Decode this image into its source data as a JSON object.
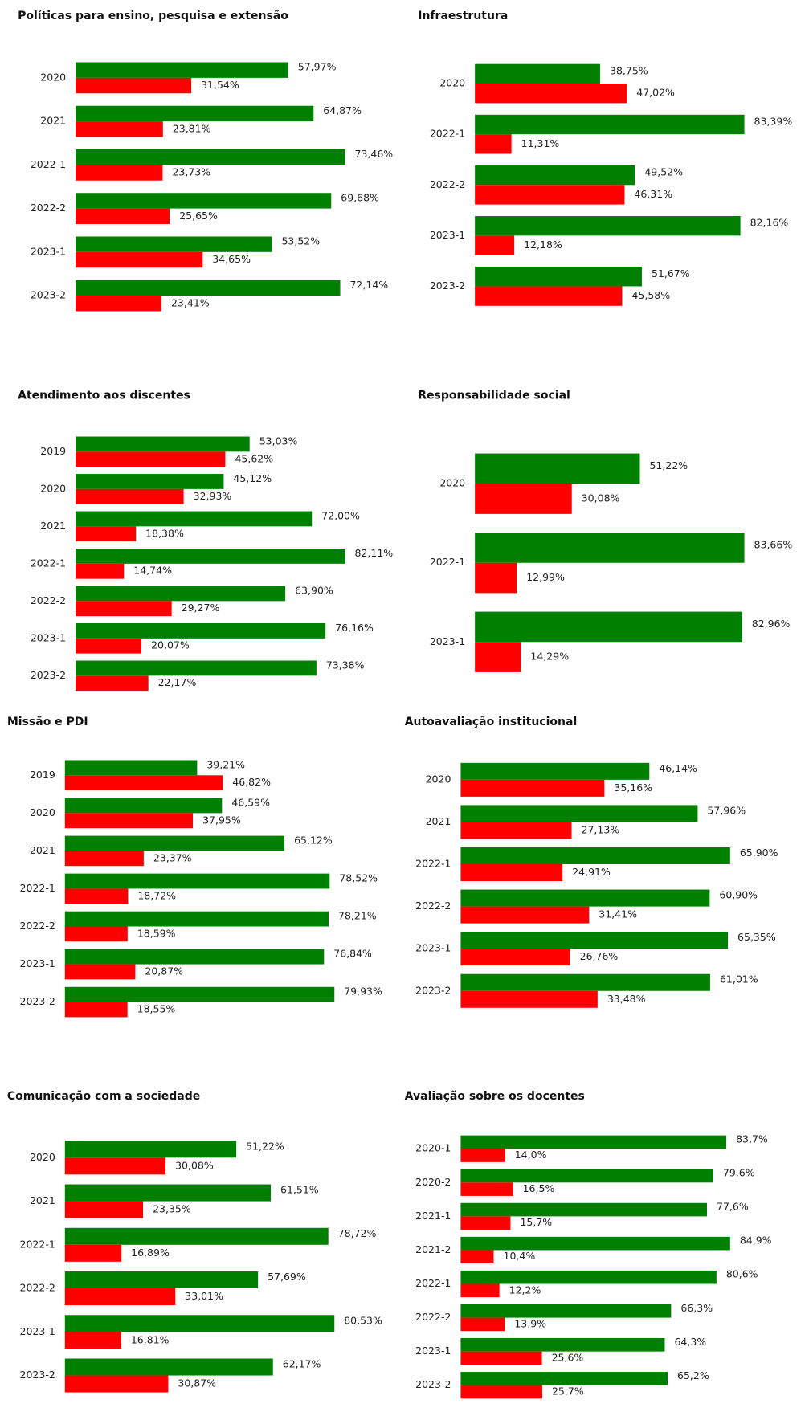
{
  "chart_data": [
    {
      "type": "bar",
      "title": "Políticas para ensino, pesquisa e extensão",
      "categories": [
        "2020",
        "2021",
        "2022-1",
        "2022-2",
        "2023-1",
        "2023-2"
      ],
      "series": [
        {
          "color": "#008000",
          "values": [
            57.97,
            64.87,
            73.46,
            69.68,
            53.52,
            72.14
          ],
          "value_labels": [
            "57,97%",
            "64,87%",
            "73,46%",
            "69,68%",
            "53,52%",
            "72,14%"
          ]
        },
        {
          "color": "#ff0000",
          "values": [
            31.54,
            23.81,
            23.73,
            25.65,
            34.65,
            23.41
          ],
          "value_labels": [
            "31,54%",
            "23,81%",
            "23,73%",
            "25,65%",
            "34,65%",
            "23,41%"
          ]
        }
      ]
    },
    {
      "type": "bar",
      "title": "Infraestrutura",
      "categories": [
        "2020",
        "2022-1",
        "2022-2",
        "2023-1",
        "2023-2"
      ],
      "series": [
        {
          "color": "#008000",
          "values": [
            38.75,
            83.39,
            49.52,
            82.16,
            51.67
          ],
          "value_labels": [
            "38,75%",
            "83,39%",
            "49,52%",
            "82,16%",
            "51,67%"
          ]
        },
        {
          "color": "#ff0000",
          "values": [
            47.02,
            11.31,
            46.31,
            12.18,
            45.58
          ],
          "value_labels": [
            "47,02%",
            "11,31%",
            "46,31%",
            "12,18%",
            "45,58%"
          ]
        }
      ]
    },
    {
      "type": "bar",
      "title": "Atendimento aos discentes",
      "categories": [
        "2019",
        "2020",
        "2021",
        "2022-1",
        "2022-2",
        "2023-1",
        "2023-2"
      ],
      "series": [
        {
          "color": "#008000",
          "values": [
            53.03,
            45.12,
            72.0,
            82.11,
            63.9,
            76.16,
            73.38
          ],
          "value_labels": [
            "53,03%",
            "45,12%",
            "72,00%",
            "82,11%",
            "63,90%",
            "76,16%",
            "73,38%"
          ]
        },
        {
          "color": "#ff0000",
          "values": [
            45.62,
            32.93,
            18.38,
            14.74,
            29.27,
            20.07,
            22.17
          ],
          "value_labels": [
            "45,62%",
            "32,93%",
            "18,38%",
            "14,74%",
            "29,27%",
            "20,07%",
            "22,17%"
          ]
        }
      ]
    },
    {
      "type": "bar",
      "title": "Responsabilidade social",
      "categories": [
        "2020",
        "2022-1",
        "2023-1"
      ],
      "series": [
        {
          "color": "#008000",
          "values": [
            51.22,
            83.66,
            82.96
          ],
          "value_labels": [
            "51,22%",
            "83,66%",
            "82,96%"
          ]
        },
        {
          "color": "#ff0000",
          "values": [
            30.08,
            12.99,
            14.29
          ],
          "value_labels": [
            "30,08%",
            "12,99%",
            "14,29%"
          ]
        }
      ]
    },
    {
      "type": "bar",
      "title": "Missão e PDI",
      "categories": [
        "2019",
        "2020",
        "2021",
        "2022-1",
        "2022-2",
        "2023-1",
        "2023-2"
      ],
      "series": [
        {
          "color": "#008000",
          "values": [
            39.21,
            46.59,
            65.12,
            78.52,
            78.21,
            76.84,
            79.93
          ],
          "value_labels": [
            "39,21%",
            "46,59%",
            "65,12%",
            "78,52%",
            "78,21%",
            "76,84%",
            "79,93%"
          ]
        },
        {
          "color": "#ff0000",
          "values": [
            46.82,
            37.95,
            23.37,
            18.72,
            18.59,
            20.87,
            18.55
          ],
          "value_labels": [
            "46,82%",
            "37,95%",
            "23,37%",
            "18,72%",
            "18,59%",
            "20,87%",
            "18,55%"
          ]
        }
      ]
    },
    {
      "type": "bar",
      "title": "Autoavaliação institucional",
      "categories": [
        "2020",
        "2021",
        "2022-1",
        "2022-2",
        "2023-1",
        "2023-2"
      ],
      "series": [
        {
          "color": "#008000",
          "values": [
            46.14,
            57.96,
            65.9,
            60.9,
            65.35,
            61.01
          ],
          "value_labels": [
            "46,14%",
            "57,96%",
            "65,90%",
            "60,90%",
            "65,35%",
            "61,01%"
          ]
        },
        {
          "color": "#ff0000",
          "values": [
            35.16,
            27.13,
            24.91,
            31.41,
            26.76,
            33.48
          ],
          "value_labels": [
            "35,16%",
            "27,13%",
            "24,91%",
            "31,41%",
            "26,76%",
            "33,48%"
          ]
        }
      ]
    },
    {
      "type": "bar",
      "title": "Comunicação com a sociedade",
      "categories": [
        "2020",
        "2021",
        "2022-1",
        "2022-2",
        "2023-1",
        "2023-2"
      ],
      "series": [
        {
          "color": "#008000",
          "values": [
            51.22,
            61.51,
            78.72,
            57.69,
            80.53,
            62.17
          ],
          "value_labels": [
            "51,22%",
            "61,51%",
            "78,72%",
            "57,69%",
            "80,53%",
            "62,17%"
          ]
        },
        {
          "color": "#ff0000",
          "values": [
            30.08,
            23.35,
            16.89,
            33.01,
            16.81,
            30.87
          ],
          "value_labels": [
            "30,08%",
            "23,35%",
            "16,89%",
            "33,01%",
            "16,81%",
            "30,87%"
          ]
        }
      ]
    },
    {
      "type": "bar",
      "title": "Avaliação sobre os docentes",
      "categories": [
        "2020-1",
        "2020-2",
        "2021-1",
        "2021-2",
        "2022-1",
        "2022-2",
        "2023-1",
        "2023-2"
      ],
      "series": [
        {
          "color": "#008000",
          "values": [
            83.7,
            79.6,
            77.6,
            84.9,
            80.6,
            66.3,
            64.3,
            65.2
          ],
          "value_labels": [
            "83,7%",
            "79,6%",
            "77,6%",
            "84,9%",
            "80,6%",
            "66,3%",
            "64,3%",
            "65,2%"
          ]
        },
        {
          "color": "#ff0000",
          "values": [
            14.0,
            16.5,
            15.7,
            10.4,
            12.2,
            13.9,
            25.6,
            25.7
          ],
          "value_labels": [
            "14,0%",
            "16,5%",
            "15,7%",
            "10,4%",
            "12,2%",
            "13,9%",
            "25,6%",
            "25,7%"
          ]
        }
      ]
    }
  ]
}
